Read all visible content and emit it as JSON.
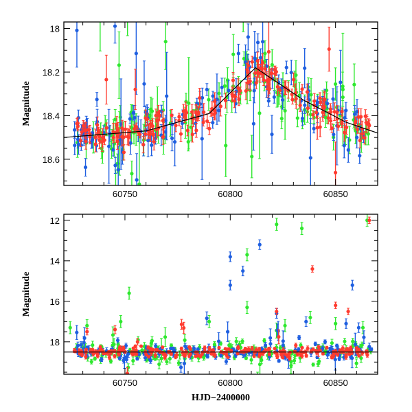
{
  "chart_data": [
    {
      "panel": "top",
      "type": "scatter",
      "title": "",
      "xlabel": "",
      "ylabel": "Magnitude",
      "xlim": [
        60721,
        60870
      ],
      "ylim": [
        18.72,
        17.97
      ],
      "y_inverted": true,
      "x_ticks": [
        60750,
        60800,
        60850
      ],
      "y_ticks": [
        18.0,
        18.2,
        18.4,
        18.6
      ],
      "y_tick_labels": [
        "18",
        "18.2",
        "18.4",
        "18.6"
      ],
      "grid": false,
      "model_line": {
        "color": "#000000",
        "points": [
          [
            60721,
            18.5
          ],
          [
            60760,
            18.47
          ],
          [
            60790,
            18.39
          ],
          [
            60812,
            18.18
          ],
          [
            60835,
            18.33
          ],
          [
            60855,
            18.43
          ],
          [
            60870,
            18.48
          ]
        ]
      },
      "series": [
        {
          "color": "#2ee82e",
          "n_points": 130,
          "spread": 0.07,
          "err": 0.05,
          "outlier_frac": 0.16,
          "seed": 11
        },
        {
          "color": "#1f5fe0",
          "n_points": 130,
          "spread": 0.06,
          "err": 0.04,
          "outlier_frac": 0.12,
          "seed": 23
        },
        {
          "color": "#ff3b2f",
          "n_points": 200,
          "spread": 0.035,
          "err": 0.03,
          "outlier_frac": 0.03,
          "seed": 37
        }
      ]
    },
    {
      "panel": "bottom",
      "type": "scatter",
      "title": "",
      "xlabel": "HJD−2400000",
      "ylabel": "Magnitude",
      "xlim": [
        60721,
        60870
      ],
      "ylim": [
        19.6,
        11.7
      ],
      "y_inverted": true,
      "x_ticks": [
        60750,
        60800,
        60850
      ],
      "y_ticks": [
        12,
        14,
        16,
        18
      ],
      "y_tick_labels": [
        "12",
        "14",
        "16",
        "18"
      ],
      "grid": false,
      "model_line": {
        "color": "#000000",
        "points": [
          [
            60721,
            18.5
          ],
          [
            60870,
            18.5
          ]
        ]
      },
      "series": [
        {
          "color": "#2ee82e",
          "n_points": 150,
          "spread": 0.3,
          "err": 0.15,
          "outlier_frac": 0.12,
          "seed": 41,
          "highlights": [
            [
              60724,
              17.3
            ],
            [
              60732,
              17.2
            ],
            [
              60748,
              17.0
            ],
            [
              60752,
              15.6
            ],
            [
              60790,
              17.0
            ],
            [
              60808,
              16.3
            ],
            [
              60808,
              13.7
            ],
            [
              60822,
              12.2
            ],
            [
              60826,
              17.2
            ],
            [
              60834,
              12.4
            ],
            [
              60838,
              16.8
            ],
            [
              60850,
              17.1
            ],
            [
              60865,
              12.0
            ],
            [
              60863,
              17.3
            ]
          ]
        },
        {
          "color": "#1f5fe0",
          "n_points": 150,
          "spread": 0.25,
          "err": 0.12,
          "outlier_frac": 0.1,
          "seed": 53,
          "highlights": [
            [
              60800,
              13.8
            ],
            [
              60800,
              15.2
            ],
            [
              60806,
              14.5
            ],
            [
              60814,
              13.2
            ],
            [
              60822,
              16.6
            ],
            [
              60836,
              17.0
            ],
            [
              60855,
              17.1
            ],
            [
              60858,
              15.2
            ],
            [
              60861,
              17.3
            ]
          ]
        },
        {
          "color": "#ff3b2f",
          "n_points": 220,
          "spread": 0.12,
          "err": 0.08,
          "outlier_frac": 0.03,
          "seed": 67,
          "highlights": [
            [
              60732,
              17.5
            ],
            [
              60756,
              18.0
            ],
            [
              60822,
              16.5
            ],
            [
              60839,
              14.4
            ],
            [
              60850,
              16.2
            ],
            [
              60856,
              16.5
            ],
            [
              60866,
              12.0
            ]
          ]
        }
      ]
    }
  ]
}
